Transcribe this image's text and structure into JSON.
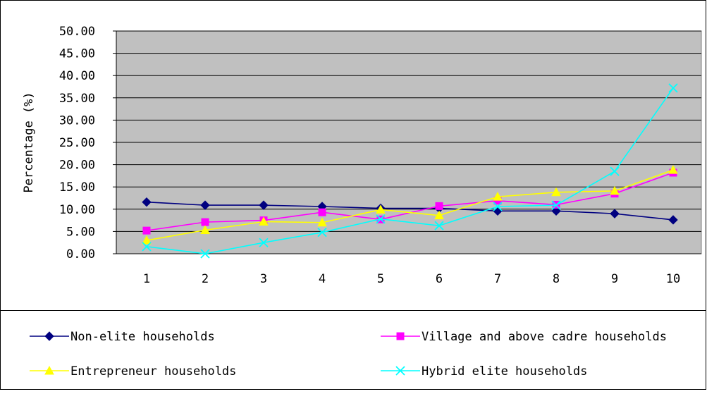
{
  "chart_data": {
    "type": "line",
    "title": "",
    "xlabel": "",
    "ylabel": "Percentage  (%)",
    "categories": [
      "1",
      "2",
      "3",
      "4",
      "5",
      "6",
      "7",
      "8",
      "9",
      "10"
    ],
    "ylim": [
      0,
      50
    ],
    "yticks": [
      "0.00",
      "5.00",
      "10.00",
      "15.00",
      "20.00",
      "25.00",
      "30.00",
      "35.00",
      "40.00",
      "45.00",
      "50.00"
    ],
    "grid": true,
    "legend_position": "bottom",
    "series": [
      {
        "name": "Non-elite households",
        "color": "#000080",
        "marker": "diamond",
        "values": [
          11.6,
          10.9,
          10.9,
          10.6,
          10.2,
          10.2,
          9.6,
          9.6,
          9.0,
          7.6
        ]
      },
      {
        "name": "Village and above cadre households",
        "color": "#ff00ff",
        "marker": "square",
        "values": [
          5.2,
          7.1,
          7.5,
          9.3,
          7.7,
          10.7,
          11.9,
          11.0,
          13.5,
          18.2
        ]
      },
      {
        "name": "Entrepreneur households",
        "color": "#ffff00",
        "marker": "triangle",
        "values": [
          3.0,
          5.3,
          7.2,
          7.0,
          9.9,
          8.6,
          12.8,
          13.8,
          14.1,
          18.8
        ]
      },
      {
        "name": "Hybrid elite households",
        "color": "#00ffff",
        "marker": "x",
        "values": [
          1.6,
          0.0,
          2.5,
          4.8,
          7.8,
          6.3,
          10.6,
          10.9,
          18.5,
          37.2
        ]
      }
    ],
    "plot_background": "#c0c0c0"
  }
}
